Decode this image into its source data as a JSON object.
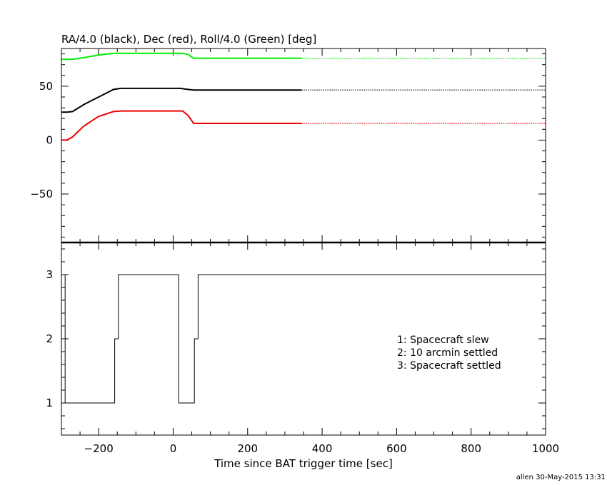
{
  "chart_data": [
    {
      "type": "line",
      "title": "RA/4.0 (black), Dec (red), Roll/4.0 (Green) [deg]",
      "xlim": [
        -300,
        1000
      ],
      "ylim": [
        -95,
        85
      ],
      "yticks": [
        -50,
        0,
        50
      ],
      "ytick_labels": [
        "−50",
        "0",
        "50"
      ],
      "dotted_after_x": 345,
      "series": [
        {
          "color": "#00ee00",
          "x": [
            -300,
            -270,
            -240,
            -200,
            -160,
            -140,
            25,
            40,
            55,
            345,
            1000
          ],
          "y": [
            75,
            75,
            76.5,
            79,
            80.5,
            80.5,
            80.5,
            79.5,
            76,
            76,
            76
          ]
        },
        {
          "color": "#000000",
          "x": [
            -300,
            -285,
            -270,
            -240,
            -200,
            -160,
            -140,
            20,
            40,
            55,
            345,
            1000
          ],
          "y": [
            26,
            26,
            26.5,
            33,
            40,
            47,
            48,
            48,
            47,
            46.5,
            46.5,
            46.5
          ]
        },
        {
          "color": "#ee0000",
          "x": [
            -300,
            -285,
            -270,
            -240,
            -200,
            -160,
            -140,
            25,
            40,
            55,
            345,
            1000
          ],
          "y": [
            0,
            0,
            3,
            13,
            22,
            26.5,
            27,
            27,
            23,
            15.5,
            15.5,
            15.5
          ]
        }
      ]
    },
    {
      "type": "line",
      "xlabel": "Time since BAT trigger time [sec]",
      "xlim": [
        -300,
        1000
      ],
      "ylim": [
        0.5,
        3.5
      ],
      "xticks": [
        -200,
        0,
        200,
        400,
        600,
        800,
        1000
      ],
      "xtick_labels": [
        "−200",
        "0",
        "200",
        "400",
        "600",
        "800",
        "1000"
      ],
      "yticks": [
        1,
        2,
        3
      ],
      "ytick_labels": [
        "1",
        "2",
        "3"
      ],
      "series": [
        {
          "color": "#000000",
          "x": [
            -300,
            -290,
            -290,
            -157,
            -157,
            -147,
            -147,
            15,
            15,
            57,
            57,
            67,
            67,
            1000
          ],
          "y": [
            3,
            3,
            1,
            1,
            2,
            2,
            3,
            3,
            1,
            1,
            2,
            2,
            3,
            3
          ]
        }
      ],
      "annotations": [
        "1: Spacecraft slew",
        "2: 10 arcmin settled",
        "3: Spacecraft settled"
      ]
    }
  ],
  "footer": "allen 30-May-2015 13:31"
}
